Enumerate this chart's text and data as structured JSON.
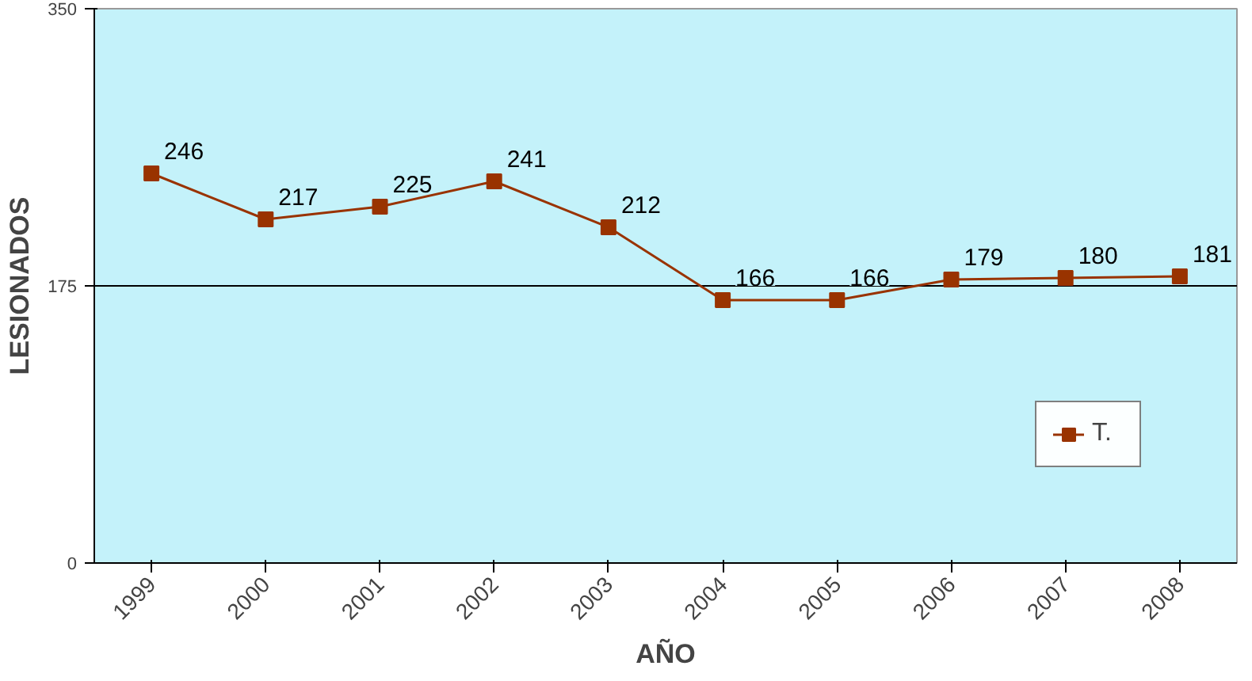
{
  "chart_data": {
    "type": "line",
    "xlabel": "AÑO",
    "ylabel": "LESIONADOS",
    "categories": [
      "1999",
      "2000",
      "2001",
      "2002",
      "2003",
      "2004",
      "2005",
      "2006",
      "2007",
      "2008"
    ],
    "series": [
      {
        "name": "T.",
        "color": "#993300",
        "values": [
          246,
          217,
          225,
          241,
          212,
          166,
          166,
          179,
          180,
          181
        ]
      }
    ],
    "ylim": [
      0,
      350
    ],
    "yticks": [
      0,
      175,
      350
    ],
    "grid": "y",
    "legend": "bottom right",
    "marker": "square",
    "line_style": "solid",
    "data_labels": true
  }
}
